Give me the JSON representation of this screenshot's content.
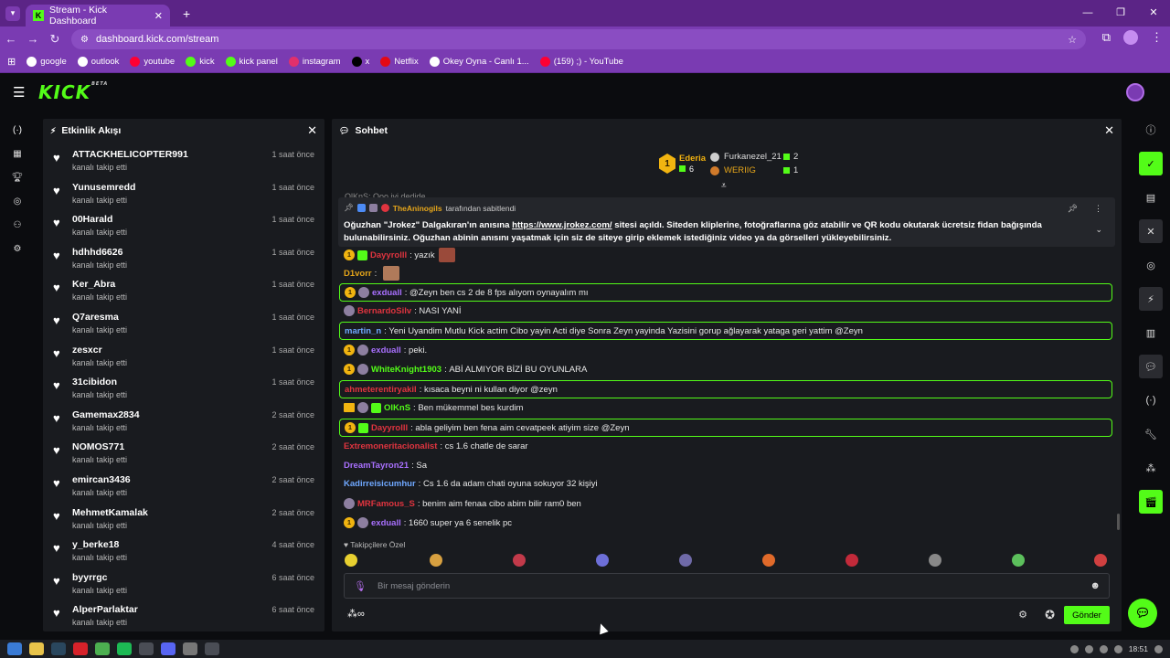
{
  "browser": {
    "tab_title": "Stream - Kick Dashboard",
    "url": "dashboard.kick.com/stream",
    "bookmarks": [
      {
        "label": "google",
        "icon": "google-icon",
        "color": "#ffffff"
      },
      {
        "label": "outlook",
        "icon": "globe-icon",
        "color": "#ffffff"
      },
      {
        "label": "youtube",
        "icon": "youtube-icon",
        "color": "#ff0033"
      },
      {
        "label": "kick",
        "icon": "kick-icon",
        "color": "#53fc18"
      },
      {
        "label": "kick panel",
        "icon": "kick-icon",
        "color": "#53fc18"
      },
      {
        "label": "instagram",
        "icon": "instagram-icon",
        "color": "#e1306c"
      },
      {
        "label": "x",
        "icon": "x-icon",
        "color": "#000000"
      },
      {
        "label": "Netflix",
        "icon": "netflix-icon",
        "color": "#e50914"
      },
      {
        "label": "Okey Oyna - Canlı 1...",
        "icon": "okey-icon",
        "color": "#ffffff"
      },
      {
        "label": "(159) ;) - YouTube",
        "icon": "youtube-icon",
        "color": "#ff0033"
      }
    ]
  },
  "kick": {
    "logo": "KICK",
    "beta": "BETA",
    "accent": "#53fc18"
  },
  "activity": {
    "title": "Etkinlik Akışı",
    "items": [
      {
        "user": "ATTACKHELICOPTER991",
        "sub": "kanalı takip etti",
        "time": "1 saat önce"
      },
      {
        "user": "Yunusemredd",
        "sub": "kanalı takip etti",
        "time": "1 saat önce"
      },
      {
        "user": "00Harald",
        "sub": "kanalı takip etti",
        "time": "1 saat önce"
      },
      {
        "user": "hdhhd6626",
        "sub": "kanalı takip etti",
        "time": "1 saat önce"
      },
      {
        "user": "Ker_Abra",
        "sub": "kanalı takip etti",
        "time": "1 saat önce"
      },
      {
        "user": "Q7aresma",
        "sub": "kanalı takip etti",
        "time": "1 saat önce"
      },
      {
        "user": "zesxcr",
        "sub": "kanalı takip etti",
        "time": "1 saat önce"
      },
      {
        "user": "31cibidon",
        "sub": "kanalı takip etti",
        "time": "1 saat önce"
      },
      {
        "user": "Gamemax2834",
        "sub": "kanalı takip etti",
        "time": "2 saat önce"
      },
      {
        "user": "NOMOS771",
        "sub": "kanalı takip etti",
        "time": "2 saat önce"
      },
      {
        "user": "emircan3436",
        "sub": "kanalı takip etti",
        "time": "2 saat önce"
      },
      {
        "user": "MehmetKamalak",
        "sub": "kanalı takip etti",
        "time": "2 saat önce"
      },
      {
        "user": "y_berke18",
        "sub": "kanalı takip etti",
        "time": "4 saat önce"
      },
      {
        "user": "byyrrgc",
        "sub": "kanalı takip etti",
        "time": "6 saat önce"
      },
      {
        "user": "AlperParlaktar",
        "sub": "kanalı takip etti",
        "time": "6 saat önce"
      }
    ]
  },
  "chat": {
    "title": "Sohbet",
    "leaderboard": {
      "first": {
        "rank": "1",
        "name": "Ederia",
        "count": "6"
      },
      "second": {
        "name": "Furkanezel_21",
        "count": "2"
      },
      "third": {
        "name": "WERIIG",
        "count": "1"
      }
    },
    "ghost_line": "OlKnS: Ooo iyi dedide",
    "pinned": {
      "user": "TheAninogils",
      "label": "tarafından sabitlendi",
      "text_a": "Oğuzhan \"Jrokez\" Dalgakıran'ın anısına ",
      "link": "https://www.jrokez.com/",
      "text_b": " sitesi açıldı. Siteden kliplerine, fotoğraflarına göz atabilir ve QR kodu okutarak ücretsiz fidan bağışında bulunabilirsiniz. Oğuzhan abinin anısını yaşatmak için siz de siteye girip eklemek istediğiniz video ya da görselleri yükleyebilirsiniz."
    },
    "messages": [
      {
        "badges": [
          "sub",
          "gift"
        ],
        "user": "Dayyrolll",
        "color": "#e0343f",
        "text": "yazık",
        "emote": "#9a4a3a",
        "hl": false
      },
      {
        "badges": [],
        "user": "D1vorr",
        "color": "#e5a51a",
        "text": "",
        "emote": "#b07a5a",
        "hl": false
      },
      {
        "badges": [
          "sub",
          "avatar"
        ],
        "user": "exduall",
        "color": "#a970ff",
        "text": "@Zeyn ben cs 2 de 8 fps alıyom oynayalım mı",
        "hl": true
      },
      {
        "badges": [
          "avatar"
        ],
        "user": "BernardoSilv",
        "color": "#e0343f",
        "text": "NASI YANİ",
        "hl": false
      },
      {
        "badges": [],
        "user": "martin_n",
        "color": "#6fa8ff",
        "text": "Yeni Uyandim Mutlu Kick actim Cibo yayin Acti diye Sonra Zeyn yayinda Yazisini gorup ağlayarak yataga geri yattim @Zeyn",
        "hl": true
      },
      {
        "badges": [
          "sub",
          "avatar"
        ],
        "user": "exduall",
        "color": "#a970ff",
        "text": "peki.",
        "hl": false
      },
      {
        "badges": [
          "sub",
          "avatar"
        ],
        "user": "WhiteKnight1903",
        "color": "#53fc18",
        "text": "ABİ ALMIYOR BİZİ BU OYUNLARA",
        "hl": false
      },
      {
        "badges": [],
        "user": "ahmeterentiryakil",
        "color": "#e0343f",
        "text": "kısaca beyni ni kullan diyor @zeyn",
        "hl": true
      },
      {
        "badges": [
          "crown",
          "avatar",
          "gift"
        ],
        "user": "OlKnS",
        "color": "#53fc18",
        "text": "Ben mükemmel bes kurdim",
        "hl": false
      },
      {
        "badges": [
          "sub",
          "gift"
        ],
        "user": "Dayyrolll",
        "color": "#e0343f",
        "text": "abla geliyim ben fena aim cevatpeek atiyim size @Zeyn",
        "hl": true
      },
      {
        "badges": [],
        "user": "Extremoneritacionalist",
        "color": "#e0343f",
        "text": "cs 1.6 chatle de sarar",
        "hl": false
      },
      {
        "badges": [],
        "user": "DreamTayron21",
        "color": "#a970ff",
        "text": "Sa",
        "hl": false
      },
      {
        "badges": [],
        "user": "Kadirreisicumhur",
        "color": "#6fa8ff",
        "text": "Cs 1.6 da adam chati oyuna sokuyor 32 kişiyi",
        "hl": false
      },
      {
        "badges": [
          "avatar"
        ],
        "user": "MRFamous_S",
        "color": "#e0343f",
        "text": "benim aim fenaa cibo abim bilir ram0 ben",
        "hl": false
      },
      {
        "badges": [
          "sub",
          "avatar"
        ],
        "user": "exduall",
        "color": "#a970ff",
        "text": "1660 super ya 6 senelik pc",
        "hl": false
      }
    ],
    "followers_only": "Takipçilere Özel",
    "input_placeholder": "Bir mesaj gönderin",
    "send_label": "Gönder"
  },
  "taskbar": {
    "time": "18:51"
  }
}
